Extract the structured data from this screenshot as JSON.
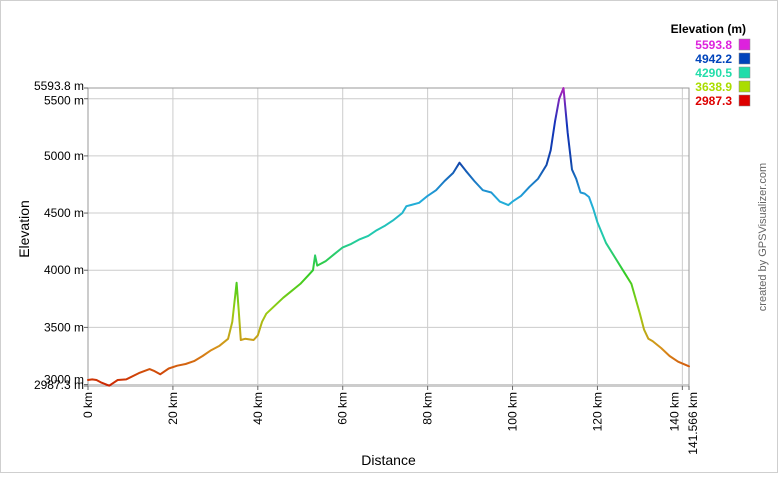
{
  "chart_data": {
    "type": "line",
    "xlabel": "Distance",
    "ylabel": "Elevation",
    "xlim": [
      0,
      141.566
    ],
    "ylim": [
      2987.3,
      5593.8
    ],
    "x_unit": "km",
    "y_unit": "m",
    "grid": true,
    "x_ticks": [
      {
        "value": 0,
        "label": "0 km"
      },
      {
        "value": 20,
        "label": "20 km"
      },
      {
        "value": 40,
        "label": "40 km"
      },
      {
        "value": 60,
        "label": "60 km"
      },
      {
        "value": 80,
        "label": "80 km"
      },
      {
        "value": 100,
        "label": "100 km"
      },
      {
        "value": 120,
        "label": "120 km"
      },
      {
        "value": 140,
        "label": "140 km"
      },
      {
        "value": 141.566,
        "label": "141.566 km"
      }
    ],
    "y_ticks": [
      {
        "value": 2987.3,
        "label": "2987.3 m"
      },
      {
        "value": 3000,
        "label": "3000 m"
      },
      {
        "value": 3500,
        "label": "3500 m"
      },
      {
        "value": 4000,
        "label": "4000 m"
      },
      {
        "value": 4500,
        "label": "4500 m"
      },
      {
        "value": 5000,
        "label": "5000 m"
      },
      {
        "value": 5500,
        "label": "5500 m"
      },
      {
        "value": 5593.8,
        "label": "5593.8 m"
      }
    ],
    "legend": {
      "title": "Elevation (m)",
      "placement": "top-right",
      "entries": [
        {
          "label": "5593.8",
          "color": "#dd22dd"
        },
        {
          "label": "4942.2",
          "color": "#0044bb"
        },
        {
          "label": "4290.5",
          "color": "#22ddaa"
        },
        {
          "label": "3638.9",
          "color": "#aadd00"
        },
        {
          "label": "2987.3",
          "color": "#dd0000"
        }
      ]
    },
    "color_stops": [
      {
        "value": 2987.3,
        "color": "#cc2200"
      },
      {
        "value": 3313.1,
        "color": "#d8901a"
      },
      {
        "value": 3638.9,
        "color": "#99cc11"
      },
      {
        "value": 3964.7,
        "color": "#33cc22"
      },
      {
        "value": 4290.5,
        "color": "#22ccaa"
      },
      {
        "value": 4616.3,
        "color": "#22aadd"
      },
      {
        "value": 4942.2,
        "color": "#1144aa"
      },
      {
        "value": 5268.0,
        "color": "#1133bb"
      },
      {
        "value": 5593.8,
        "color": "#aa22bb"
      }
    ],
    "series": [
      {
        "x": [
          0,
          1,
          2,
          3,
          5,
          7,
          9,
          12,
          14.5,
          15.5,
          17,
          19,
          21,
          23,
          25,
          27,
          29,
          31,
          33,
          34,
          35,
          35.5,
          36,
          37,
          39,
          40,
          41,
          42,
          44,
          46,
          48,
          49,
          50,
          52,
          53,
          53.5,
          54,
          55,
          56,
          58,
          60,
          62,
          64,
          66,
          68,
          70,
          72,
          74,
          75,
          76,
          78,
          80,
          82,
          84,
          86,
          87.5,
          89,
          91,
          93,
          95,
          97,
          99,
          100,
          102,
          104,
          106,
          108,
          109,
          110,
          111,
          112,
          113,
          114,
          115,
          116,
          117,
          118,
          119,
          120,
          122,
          124,
          126,
          128,
          130,
          131,
          132,
          133,
          135,
          137,
          139,
          141.566
        ],
        "y": [
          3040,
          3045,
          3040,
          3020,
          2990,
          3040,
          3045,
          3100,
          3135,
          3120,
          3090,
          3140,
          3165,
          3180,
          3205,
          3250,
          3300,
          3340,
          3400,
          3550,
          3890,
          3650,
          3390,
          3400,
          3390,
          3430,
          3550,
          3620,
          3690,
          3760,
          3820,
          3850,
          3880,
          3960,
          4000,
          4130,
          4040,
          4060,
          4080,
          4140,
          4200,
          4230,
          4270,
          4300,
          4350,
          4390,
          4440,
          4500,
          4560,
          4570,
          4590,
          4650,
          4700,
          4780,
          4850,
          4940,
          4870,
          4780,
          4700,
          4680,
          4600,
          4570,
          4600,
          4650,
          4730,
          4800,
          4920,
          5050,
          5300,
          5500,
          5593.8,
          5200,
          4880,
          4800,
          4680,
          4670,
          4640,
          4540,
          4420,
          4240,
          4120,
          4000,
          3880,
          3620,
          3480,
          3400,
          3380,
          3320,
          3250,
          3200,
          3160
        ]
      }
    ]
  },
  "credit": "created by GPSVisualizer.com"
}
